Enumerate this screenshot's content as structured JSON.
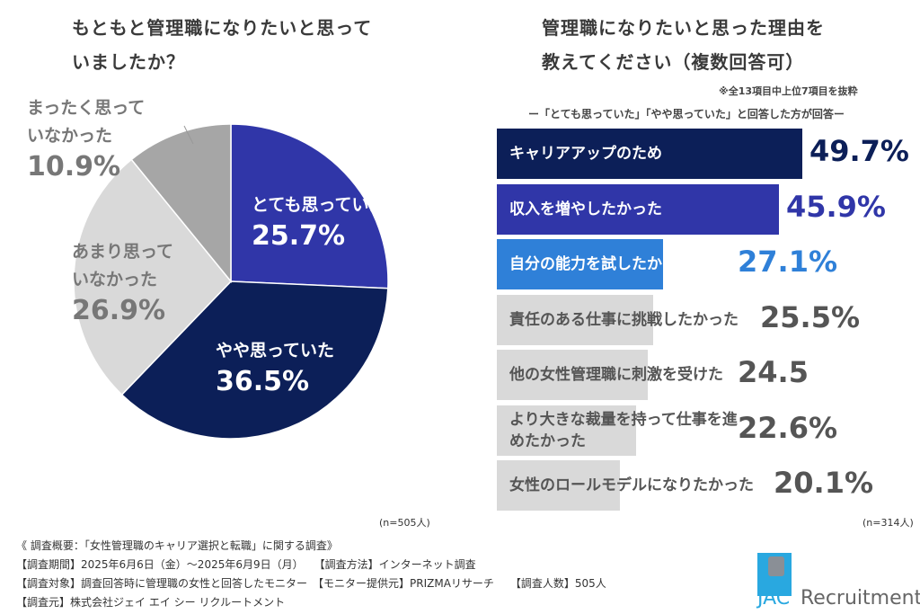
{
  "left": {
    "title_lines": [
      "もともと管理職になりたいと思って",
      "いましたか？"
    ],
    "n": "(n=505人)"
  },
  "right": {
    "title_lines": [
      "管理職になりたいと思った理由を",
      "教えてください（複数回答可）"
    ],
    "note": "※全13項目中上位7項目を抜粋",
    "subtitle": "ー「とても思っていた」「やや思っていた」と回答した方が回答ー",
    "n": "(n=314人)"
  },
  "chart_data": [
    {
      "type": "pie",
      "start": "12 o'clock, clockwise",
      "slices": [
        {
          "label": "とても思っていた",
          "value": 25.7,
          "display": "25.7%",
          "color": "#3036a8"
        },
        {
          "label": "やや思っていた",
          "value": 36.5,
          "display": "36.5%",
          "color": "#0c1f58"
        },
        {
          "label": "あまり思っていなかった",
          "label_lines": [
            "あまり思って",
            "いなかった"
          ],
          "value": 26.9,
          "display": "26.9%",
          "color": "#d9d9d9"
        },
        {
          "label": "まったく思っていなかった",
          "label_lines": [
            "まったく思って",
            "いなかった"
          ],
          "value": 10.9,
          "display": "10.9%",
          "color": "#a6a6a6"
        }
      ]
    },
    {
      "type": "bar",
      "orientation": "horizontal",
      "categories": [
        "キャリアアップのため",
        "収入を増やしたかった",
        "自分の能力を試したかった",
        "責任のある仕事に挑戦したかった",
        "他の女性管理職に刺激を受けた",
        "より大きな裁量を持って仕事を進めたかった",
        "女性のロールモデルになりたかった"
      ],
      "values": [
        49.7,
        45.9,
        27.1,
        25.5,
        24.5,
        22.6,
        20.1
      ],
      "display": [
        "49.7%",
        "45.9%",
        "27.1%",
        "25.5%",
        "24.5",
        "22.6%",
        "20.1%"
      ],
      "colors": [
        "#0c1f58",
        "#3036a8",
        "#2f80d8",
        "#d9d9d9",
        "#d9d9d9",
        "#d9d9d9",
        "#d9d9d9"
      ],
      "value_colors": [
        "#0c1f58",
        "#3036a8",
        "#2f80d8",
        "#555555",
        "#555555",
        "#555555",
        "#555555"
      ]
    }
  ],
  "footer": {
    "lines": [
      "《 調査概要：「女性管理職のキャリア選択と転職」に関する調査》",
      "【調査期間】2025年6月6日（金）～2025年6月9日（月）　　【調査方法】インターネット調査",
      "【調査対象】調査回答時に管理職の女性と回答したモニター　【モニター提供元】PRIZMAリサーチ　　【調査人数】505人",
      "【調査元】株式会社ジェイ エイ シー リクルートメント"
    ]
  },
  "logo": {
    "text_jac": "JAC",
    "text_rest": "Recruitment"
  }
}
